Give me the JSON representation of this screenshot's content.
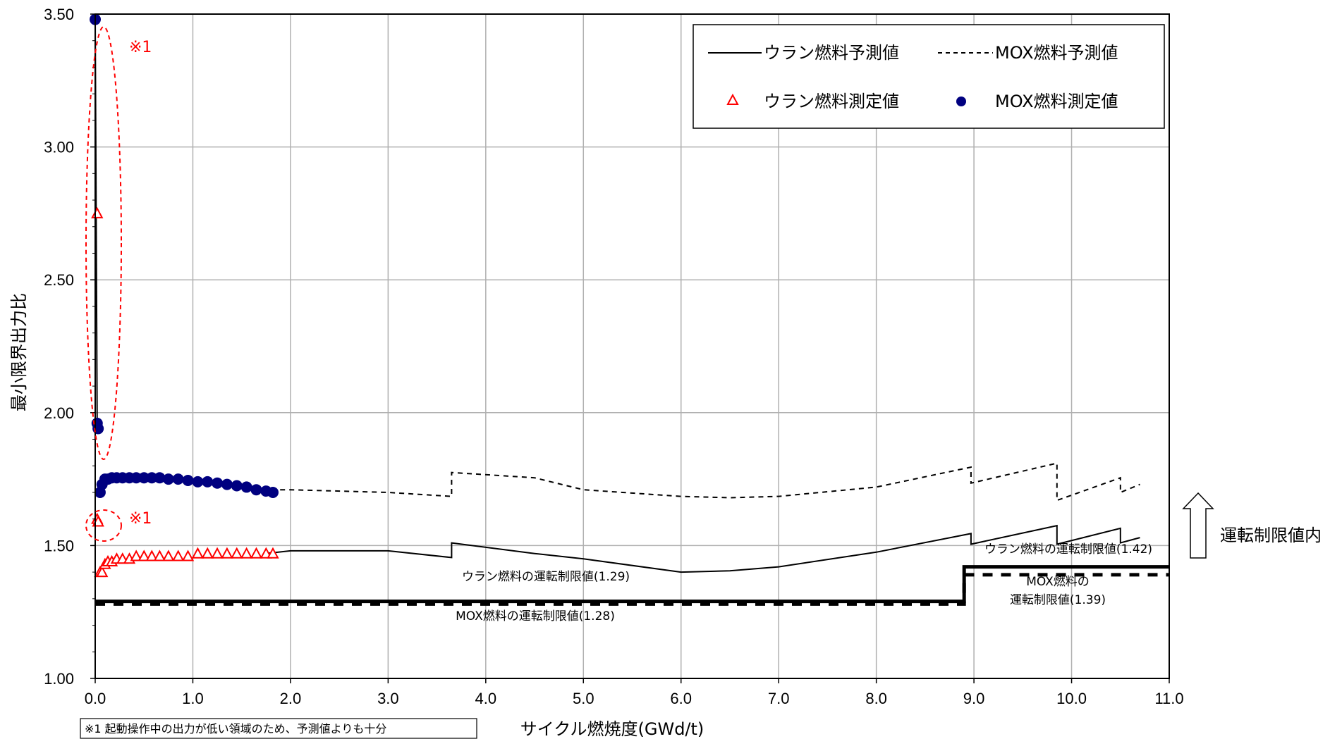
{
  "chart_data": {
    "type": "line",
    "xlabel": "サイクル燃焼度(GWd/t)",
    "ylabel": "最小限界出力比",
    "xlim": [
      0.0,
      11.0
    ],
    "ylim": [
      1.0,
      3.5
    ],
    "grid": true,
    "legend_position": "top-right",
    "x_ticks": [
      "0.0",
      "1.0",
      "2.0",
      "3.0",
      "4.0",
      "5.0",
      "6.0",
      "7.0",
      "8.0",
      "9.0",
      "10.0",
      "11.0"
    ],
    "y_ticks": [
      "1.00",
      "1.50",
      "2.00",
      "2.50",
      "3.00",
      "3.50"
    ],
    "x_tick_values": [
      0,
      1,
      2,
      3,
      4,
      5,
      6,
      7,
      8,
      9,
      10,
      11
    ],
    "y_tick_values": [
      1.0,
      1.5,
      2.0,
      2.5,
      3.0,
      3.5
    ],
    "legend": {
      "uranium_predicted": "ウラン燃料予測値",
      "mox_predicted": "MOX燃料予測値",
      "uranium_measured": "ウラン燃料測定値",
      "mox_measured": "MOX燃料測定値"
    },
    "series": [
      {
        "name": "ウラン燃料予測値",
        "style": "solid",
        "x": [
          1.75,
          2.0,
          3.0,
          3.65,
          3.65,
          4.5,
          5.0,
          6.0,
          6.5,
          7.0,
          8.0,
          8.97,
          8.97,
          9.85,
          9.85,
          10.5,
          10.5,
          10.7
        ],
        "y": [
          1.47,
          1.48,
          1.48,
          1.455,
          1.51,
          1.47,
          1.45,
          1.4,
          1.405,
          1.42,
          1.475,
          1.545,
          1.505,
          1.575,
          1.505,
          1.565,
          1.51,
          1.53
        ]
      },
      {
        "name": "MOX燃料予測値",
        "style": "dashed",
        "x": [
          1.8,
          2.0,
          3.0,
          3.65,
          3.65,
          4.5,
          5.0,
          6.0,
          6.5,
          7.0,
          8.0,
          8.97,
          8.97,
          9.85,
          9.85,
          10.5,
          10.5,
          10.7
        ],
        "y": [
          1.71,
          1.71,
          1.7,
          1.685,
          1.775,
          1.755,
          1.71,
          1.685,
          1.68,
          1.685,
          1.72,
          1.795,
          1.735,
          1.81,
          1.67,
          1.755,
          1.7,
          1.73
        ]
      },
      {
        "name": "ウラン燃料測定値",
        "style": "markers-triangle",
        "color": "#ff0000",
        "x": [
          0.02,
          0.02,
          0.03,
          0.05,
          0.07,
          0.1,
          0.13,
          0.17,
          0.22,
          0.28,
          0.35,
          0.42,
          0.5,
          0.58,
          0.66,
          0.75,
          0.85,
          0.95,
          1.05,
          1.15,
          1.25,
          1.35,
          1.45,
          1.55,
          1.65,
          1.75,
          1.82
        ],
        "y": [
          2.75,
          1.6,
          1.59,
          1.4,
          1.4,
          1.43,
          1.44,
          1.44,
          1.45,
          1.45,
          1.45,
          1.46,
          1.46,
          1.46,
          1.46,
          1.46,
          1.46,
          1.46,
          1.47,
          1.47,
          1.47,
          1.47,
          1.47,
          1.47,
          1.47,
          1.47,
          1.47
        ]
      },
      {
        "name": "MOX燃料測定値",
        "style": "markers-circle",
        "color": "#000080",
        "x": [
          0.0,
          0.02,
          0.03,
          0.05,
          0.07,
          0.1,
          0.13,
          0.17,
          0.22,
          0.28,
          0.35,
          0.42,
          0.5,
          0.58,
          0.66,
          0.75,
          0.85,
          0.95,
          1.05,
          1.15,
          1.25,
          1.35,
          1.45,
          1.55,
          1.65,
          1.75,
          1.82
        ],
        "y": [
          3.48,
          1.96,
          1.94,
          1.7,
          1.73,
          1.75,
          1.75,
          1.755,
          1.755,
          1.755,
          1.755,
          1.755,
          1.755,
          1.755,
          1.755,
          1.75,
          1.75,
          1.745,
          1.74,
          1.74,
          1.735,
          1.73,
          1.725,
          1.72,
          1.71,
          1.705,
          1.7
        ]
      }
    ],
    "limits": [
      {
        "name": "ウラン燃料の運転制限値",
        "style": "thick-solid",
        "x": [
          0.0,
          8.9,
          8.9,
          11.0
        ],
        "y": [
          1.29,
          1.29,
          1.42,
          1.42
        ]
      },
      {
        "name": "MOX燃料の運転制限値",
        "style": "thick-dashed",
        "x": [
          0.0,
          8.9,
          8.9,
          11.0
        ],
        "y": [
          1.28,
          1.28,
          1.39,
          1.39
        ]
      }
    ],
    "annotations": {
      "uranium_limit_left": "ウラン燃料の運転制限値(1.29)",
      "mox_limit_left": "MOX燃料の運転制限値(1.28)",
      "uranium_limit_right": "ウラン燃料の運転制限値(1.42)",
      "mox_limit_right_line1": "MOX燃料の",
      "mox_limit_right_line2": "運転制限値(1.39)",
      "note_marker_upper": "※1",
      "note_marker_lower": "※1",
      "side_label": "運転制限値内",
      "footnote": "※1 起動操作中の出力が低い領域のため、予測値よりも十分"
    }
  }
}
